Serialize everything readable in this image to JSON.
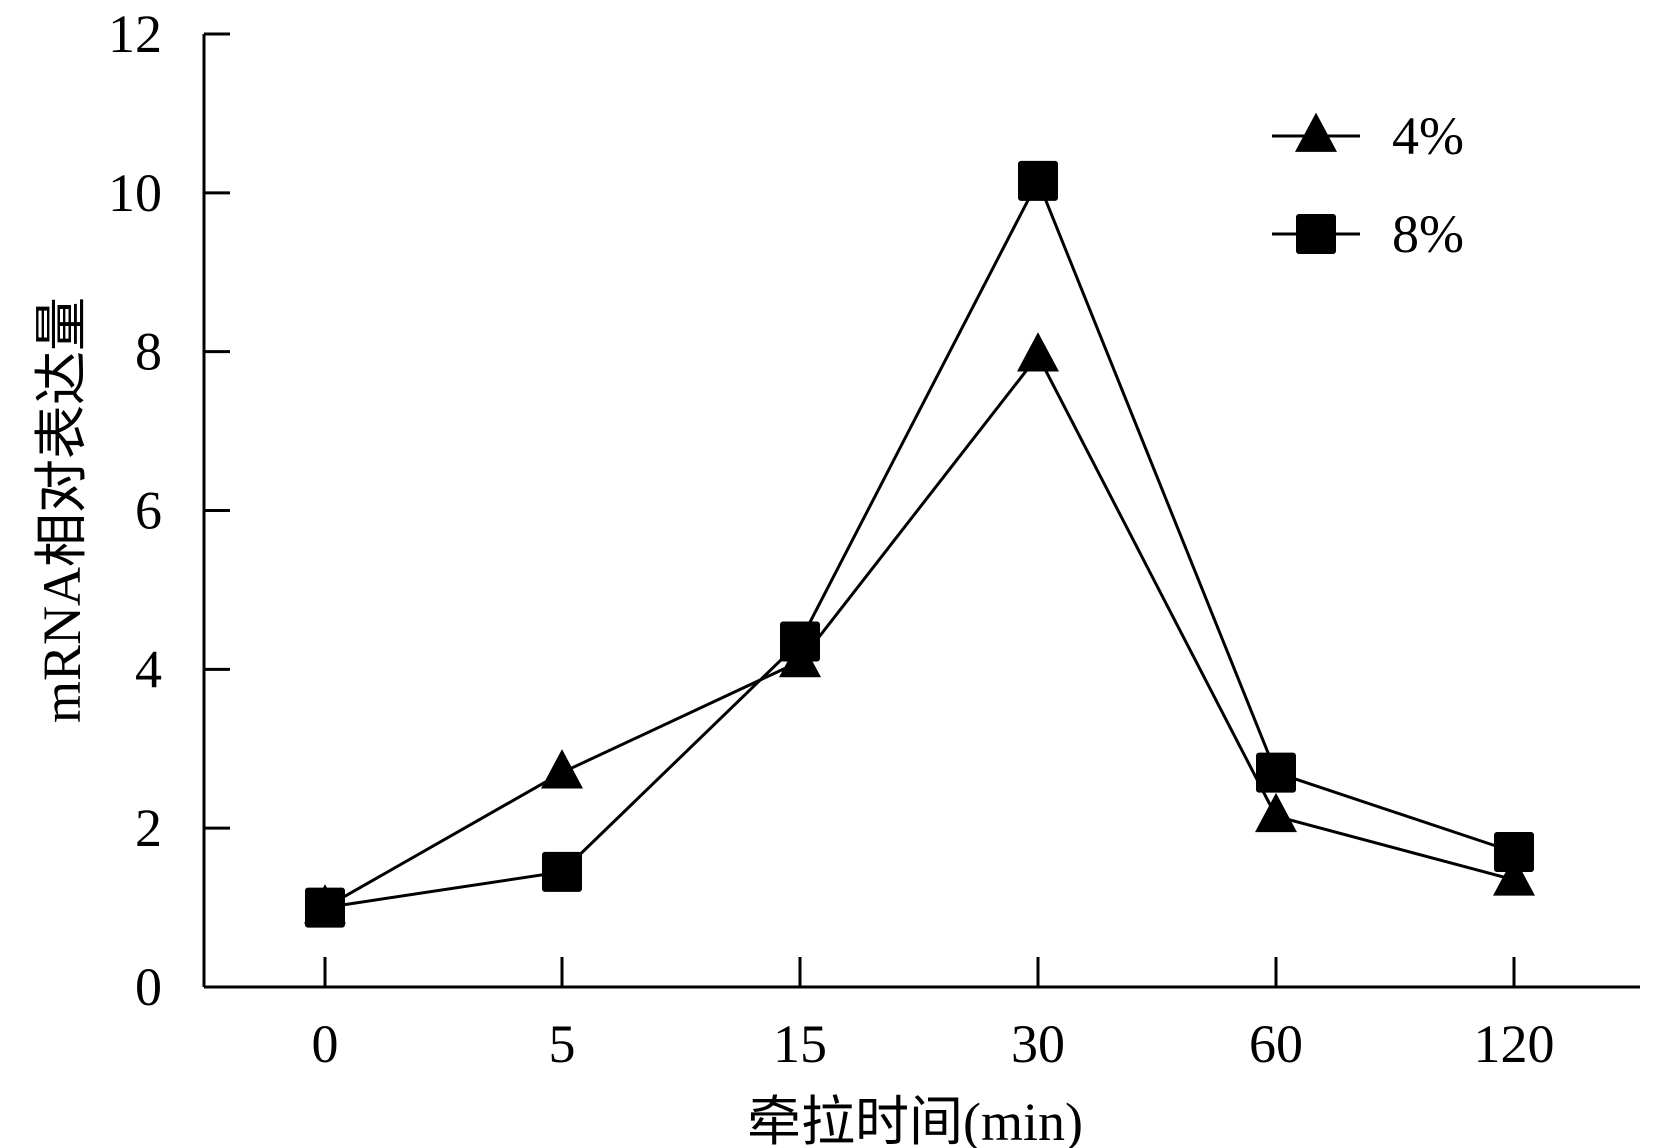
{
  "chart_data": {
    "type": "line",
    "title": "",
    "xlabel": "牵拉时间(min)",
    "ylabel": "mRNA相对表达量",
    "categories": [
      "0",
      "5",
      "15",
      "30",
      "60",
      "120"
    ],
    "ylim": [
      0,
      12
    ],
    "yticks": [
      "0",
      "2",
      "4",
      "6",
      "8",
      "10",
      "12"
    ],
    "grid": false,
    "legend_position": "top-right",
    "series": [
      {
        "name": "4%",
        "marker": "triangle",
        "color": "#000000",
        "values": [
          1.0,
          2.7,
          4.1,
          7.95,
          2.15,
          1.35
        ]
      },
      {
        "name": "8%",
        "marker": "square",
        "color": "#000000",
        "values": [
          1.0,
          1.45,
          4.35,
          10.15,
          2.7,
          1.7
        ]
      }
    ]
  }
}
